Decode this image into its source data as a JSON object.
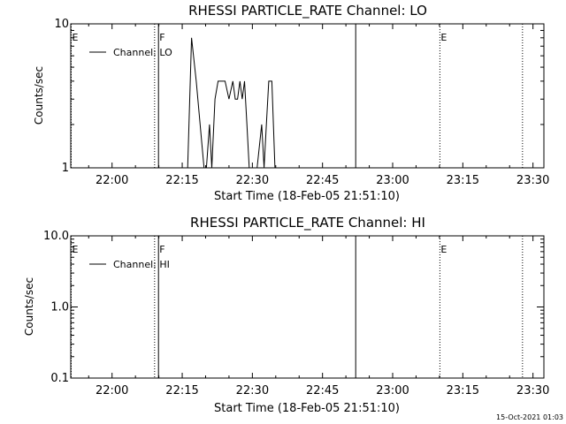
{
  "footer": {
    "timestamp": "15-Oct-2021 01:03"
  },
  "chart_data": [
    {
      "type": "line",
      "title": "RHESSI PARTICLE_RATE Channel: LO",
      "xlabel": "Start Time (18-Feb-05 21:51:10)",
      "ylabel": "Counts/sec",
      "y_scale": "log",
      "ylim": [
        1,
        10
      ],
      "y_ticks": [
        {
          "value": 1,
          "label": "1"
        },
        {
          "value": 10,
          "label": "10"
        }
      ],
      "xlim": [
        "21:51:10",
        "23:32:20"
      ],
      "x_ticks": [
        "22:00",
        "22:15",
        "22:30",
        "22:45",
        "23:00",
        "23:15",
        "23:30"
      ],
      "grid": false,
      "legend": {
        "position": "top-left",
        "entries": [
          "Channel: LO"
        ]
      },
      "markers": [
        {
          "time": "21:51:10",
          "style": "dotted",
          "label": "E"
        },
        {
          "time": "22:09:00",
          "style": "dotted",
          "label": ""
        },
        {
          "time": "22:09:50",
          "style": "solid",
          "label": "F"
        },
        {
          "time": "22:52:00",
          "style": "solid",
          "label": ""
        },
        {
          "time": "23:10:00",
          "style": "dotted",
          "label": "E"
        },
        {
          "time": "23:27:40",
          "style": "dotted",
          "label": ""
        }
      ],
      "series": [
        {
          "name": "Channel: LO",
          "points": [
            [
              "22:16:10",
              1
            ],
            [
              "22:17:00",
              8
            ],
            [
              "22:18:00",
              4
            ],
            [
              "22:19:40",
              1
            ],
            [
              "22:20:10",
              1
            ],
            [
              "22:20:50",
              2
            ],
            [
              "22:21:20",
              1
            ],
            [
              "22:22:00",
              3
            ],
            [
              "22:22:40",
              4
            ],
            [
              "22:24:10",
              4
            ],
            [
              "22:25:00",
              3
            ],
            [
              "22:25:50",
              4
            ],
            [
              "22:26:20",
              3
            ],
            [
              "22:26:50",
              3
            ],
            [
              "22:27:20",
              4
            ],
            [
              "22:27:50",
              3
            ],
            [
              "22:28:20",
              4
            ],
            [
              "22:28:50",
              2
            ],
            [
              "22:29:20",
              1
            ],
            [
              "22:30:00",
              1
            ],
            [
              "22:31:00",
              1
            ],
            [
              "22:32:00",
              2
            ],
            [
              "22:32:30",
              1
            ],
            [
              "22:33:00",
              2
            ],
            [
              "22:33:30",
              4
            ],
            [
              "22:34:10",
              4
            ],
            [
              "22:34:50",
              1
            ]
          ]
        }
      ]
    },
    {
      "type": "line",
      "title": "RHESSI PARTICLE_RATE Channel: HI",
      "xlabel": "Start Time (18-Feb-05 21:51:10)",
      "ylabel": "Counts/sec",
      "y_scale": "log",
      "ylim": [
        0.1,
        10
      ],
      "y_ticks": [
        {
          "value": 0.1,
          "label": "0.1"
        },
        {
          "value": 1,
          "label": "1.0"
        },
        {
          "value": 10,
          "label": "10.0"
        }
      ],
      "xlim": [
        "21:51:10",
        "23:32:20"
      ],
      "x_ticks": [
        "22:00",
        "22:15",
        "22:30",
        "22:45",
        "23:00",
        "23:15",
        "23:30"
      ],
      "grid": false,
      "legend": {
        "position": "top-left",
        "entries": [
          "Channel: HI"
        ]
      },
      "markers": [
        {
          "time": "21:51:10",
          "style": "dotted",
          "label": "E"
        },
        {
          "time": "22:09:00",
          "style": "dotted",
          "label": ""
        },
        {
          "time": "22:09:50",
          "style": "solid",
          "label": "F"
        },
        {
          "time": "22:52:00",
          "style": "solid",
          "label": ""
        },
        {
          "time": "23:10:00",
          "style": "dotted",
          "label": "E"
        },
        {
          "time": "23:27:40",
          "style": "dotted",
          "label": ""
        }
      ],
      "series": [
        {
          "name": "Channel: HI",
          "points": []
        }
      ]
    }
  ]
}
